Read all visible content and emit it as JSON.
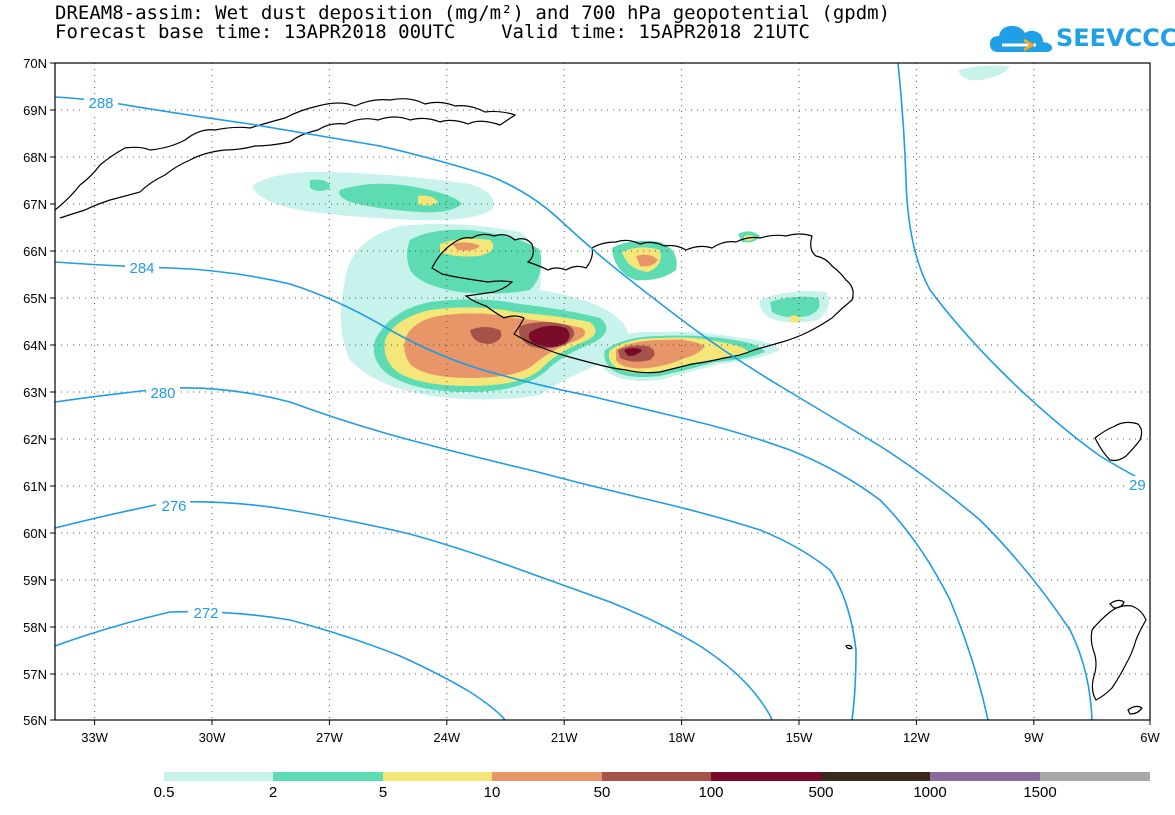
{
  "title": {
    "line1": "DREAM8-assim: Wet dust deposition (mg/m²) and 700 hPa geopotential (gpdm)",
    "line2": "Forecast base time: 13APR2018 00UTC    Valid time: 15APR2018 21UTC"
  },
  "logo": {
    "text": "SEEVCCC",
    "icon": "cloud-logo-icon",
    "color": "#1fa0e6"
  },
  "axes": {
    "lat_labels": [
      "70N",
      "69N",
      "68N",
      "67N",
      "66N",
      "65N",
      "64N",
      "63N",
      "62N",
      "61N",
      "60N",
      "59N",
      "58N",
      "57N",
      "56N"
    ],
    "lon_labels": [
      "33W",
      "30W",
      "27W",
      "24W",
      "21W",
      "18W",
      "15W",
      "12W",
      "9W",
      "6W"
    ],
    "lat_range": [
      56,
      70
    ],
    "lon_range": [
      -34,
      -6
    ],
    "grid": "dotted"
  },
  "contours": {
    "color": "#1f9ce6",
    "labels": [
      "288",
      "284",
      "280",
      "276",
      "272",
      "29"
    ]
  },
  "legend": {
    "labels": [
      "0.5",
      "2",
      "5",
      "10",
      "50",
      "100",
      "500",
      "1000",
      "1500"
    ],
    "colors": [
      "#c8f2ec",
      "#5ddcb4",
      "#f5e67a",
      "#e89668",
      "#a5524a",
      "#7a0a2a",
      "#3a2a1c",
      "#8a6a9a",
      "#a8a8a8"
    ]
  },
  "dust_colors": {
    "lightest": "#c8f2ec",
    "light": "#5ddcb4",
    "yellow": "#f5e67a",
    "orange": "#e89668",
    "brown": "#a5524a",
    "maroon": "#7a0a2a"
  }
}
